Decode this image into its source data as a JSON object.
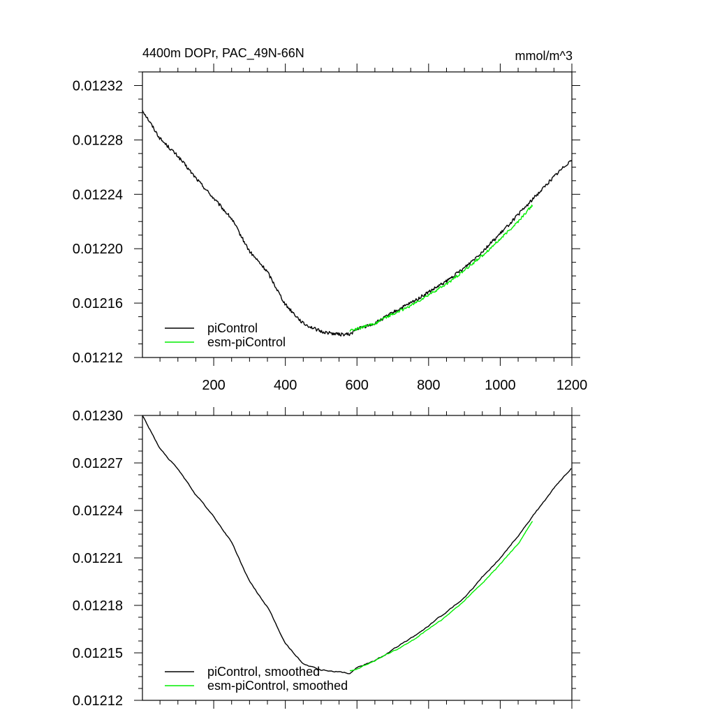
{
  "colors": {
    "picontrol": "#000000",
    "esm_picontrol": "#00ee00",
    "frame": "#000000"
  },
  "chart_data": [
    {
      "type": "line",
      "title": "4400m DOPr, PAC_49N-66N",
      "units": "mmol/m^3",
      "xlim": [
        1,
        1200
      ],
      "ylim": [
        0.01212,
        0.01233
      ],
      "x_ticks": [
        200,
        400,
        600,
        800,
        1000,
        1200
      ],
      "x_tick_labels": [
        "200",
        "400",
        "600",
        "800",
        "1000",
        "1200"
      ],
      "y_ticks": [
        0.01212,
        0.01216,
        0.0122,
        0.01224,
        0.01228,
        0.01232
      ],
      "y_tick_labels": [
        "0.01212",
        "0.01216",
        "0.01220",
        "0.01224",
        "0.01228",
        "0.01232"
      ],
      "legend": {
        "position": "bottom-left",
        "entries": [
          "piControl",
          "esm-piControl"
        ]
      },
      "series": [
        {
          "name": "piControl",
          "color": "#000000",
          "x": [
            1,
            50,
            100,
            150,
            200,
            250,
            300,
            350,
            400,
            450,
            500,
            550,
            580,
            600,
            650,
            700,
            750,
            800,
            850,
            900,
            950,
            1000,
            1050,
            1100,
            1150,
            1200
          ],
          "y": [
            0.012302,
            0.012281,
            0.012268,
            0.012252,
            0.012237,
            0.012222,
            0.012198,
            0.012183,
            0.012159,
            0.012145,
            0.012139,
            0.012137,
            0.012137,
            0.012141,
            0.012145,
            0.012153,
            0.01216,
            0.012168,
            0.012176,
            0.012186,
            0.012198,
            0.012211,
            0.012225,
            0.012239,
            0.012253,
            0.012266
          ],
          "noise": 1.2e-06
        },
        {
          "name": "esm-piControl",
          "color": "#00ee00",
          "x": [
            580,
            600,
            650,
            700,
            750,
            800,
            850,
            900,
            950,
            1000,
            1050,
            1090
          ],
          "y": [
            0.01214,
            0.012141,
            0.012145,
            0.012152,
            0.012158,
            0.012166,
            0.012174,
            0.012184,
            0.012195,
            0.012207,
            0.01222,
            0.012232
          ],
          "noise": 1e-06
        }
      ]
    },
    {
      "type": "line",
      "xlim": [
        1,
        1200
      ],
      "ylim": [
        0.01212,
        0.0123
      ],
      "x_ticks": [
        200,
        400,
        600,
        800,
        1000,
        1200
      ],
      "y_ticks": [
        0.01212,
        0.01215,
        0.01218,
        0.01221,
        0.01224,
        0.01227,
        0.0123
      ],
      "y_tick_labels": [
        "0.01212",
        "0.01215",
        "0.01218",
        "0.01221",
        "0.01224",
        "0.01227",
        "0.01230"
      ],
      "legend": {
        "position": "bottom-left",
        "entries": [
          "piControl, smoothed",
          "esm-piControl, smoothed"
        ]
      },
      "series": [
        {
          "name": "piControl, smoothed",
          "color": "#000000",
          "x": [
            1,
            50,
            100,
            150,
            200,
            250,
            300,
            350,
            400,
            450,
            500,
            550,
            580,
            600,
            650,
            700,
            750,
            800,
            850,
            900,
            950,
            1000,
            1050,
            1100,
            1150,
            1200
          ],
          "y": [
            0.0123,
            0.012279,
            0.012266,
            0.01225,
            0.012236,
            0.01222,
            0.012195,
            0.012179,
            0.012156,
            0.012143,
            0.012139,
            0.012138,
            0.012137,
            0.012141,
            0.012145,
            0.012152,
            0.012159,
            0.012167,
            0.012176,
            0.012185,
            0.012198,
            0.01221,
            0.012224,
            0.012239,
            0.012254,
            0.012267
          ],
          "noise": 3e-07
        },
        {
          "name": "esm-piControl, smoothed",
          "color": "#00ee00",
          "x": [
            580,
            600,
            650,
            700,
            750,
            800,
            850,
            900,
            950,
            1000,
            1050,
            1090
          ],
          "y": [
            0.012139,
            0.01214,
            0.012145,
            0.012151,
            0.012157,
            0.012165,
            0.012173,
            0.012183,
            0.012194,
            0.012206,
            0.012219,
            0.012233
          ],
          "noise": 3e-07
        }
      ]
    }
  ]
}
